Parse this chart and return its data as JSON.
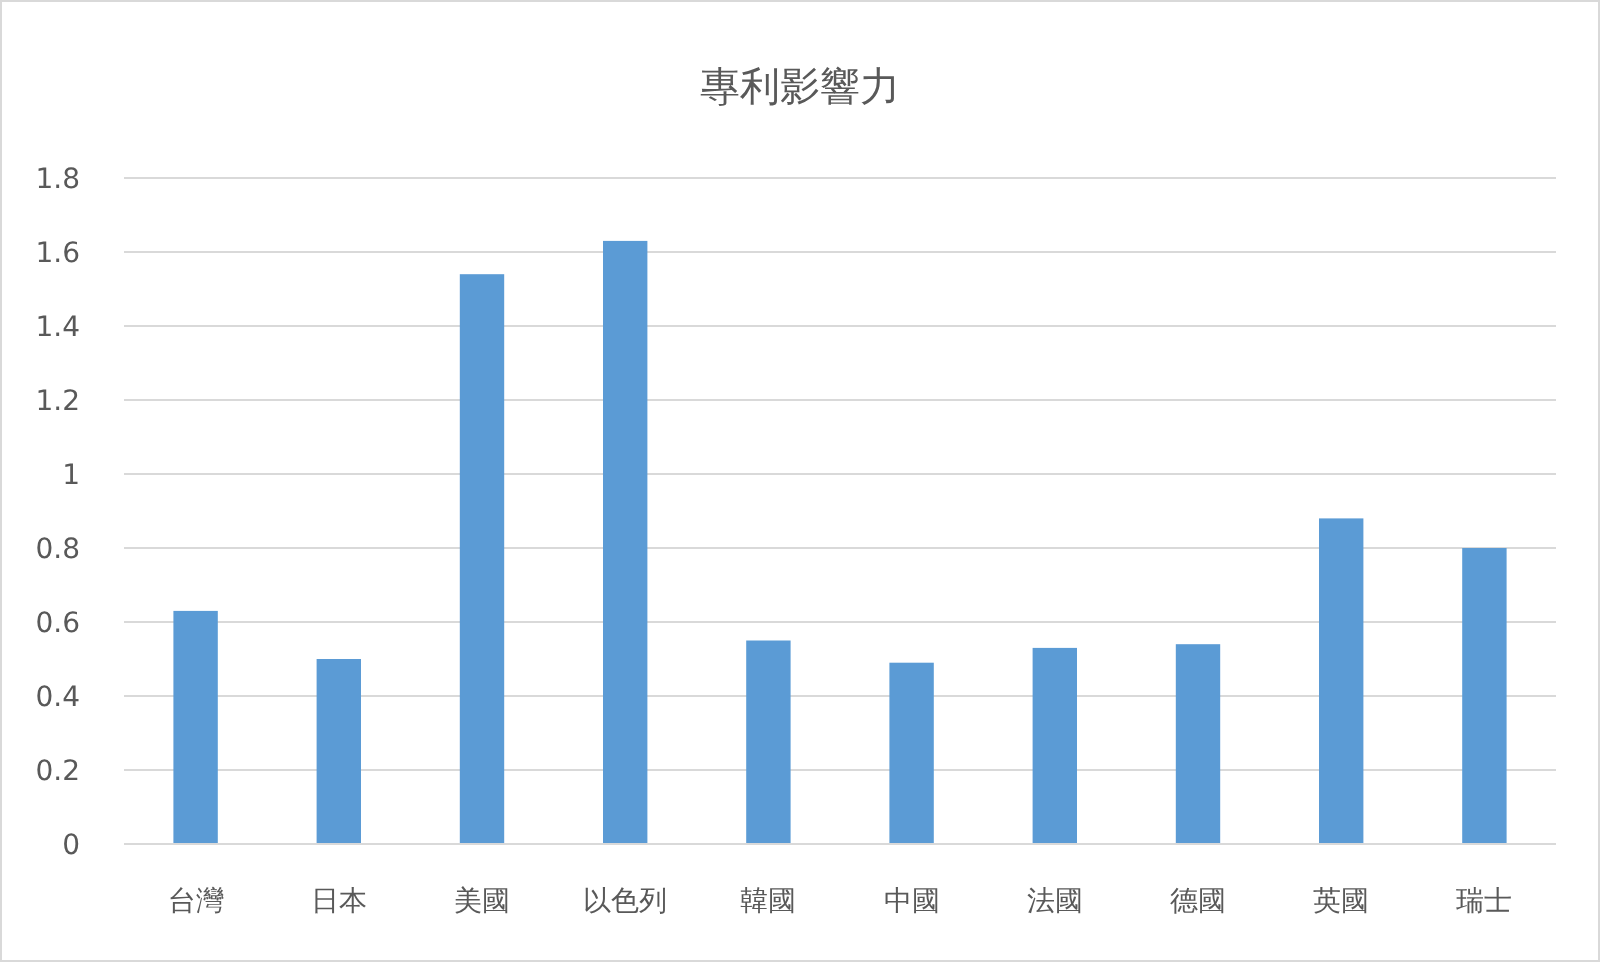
{
  "chart_data": {
    "type": "bar",
    "title": "專利影響力",
    "categories": [
      "台灣",
      "日本",
      "美國",
      "以色列",
      "韓國",
      "中國",
      "法國",
      "德國",
      "英國",
      "瑞士"
    ],
    "values": [
      0.63,
      0.5,
      1.54,
      1.63,
      0.55,
      0.49,
      0.53,
      0.54,
      0.88,
      0.8
    ],
    "color": "#5b9bd5",
    "ylim": [
      0,
      1.8
    ],
    "yticks": [
      0,
      0.2,
      0.4,
      0.6,
      0.8,
      1,
      1.2,
      1.4,
      1.6,
      1.8
    ],
    "grid": "y"
  }
}
